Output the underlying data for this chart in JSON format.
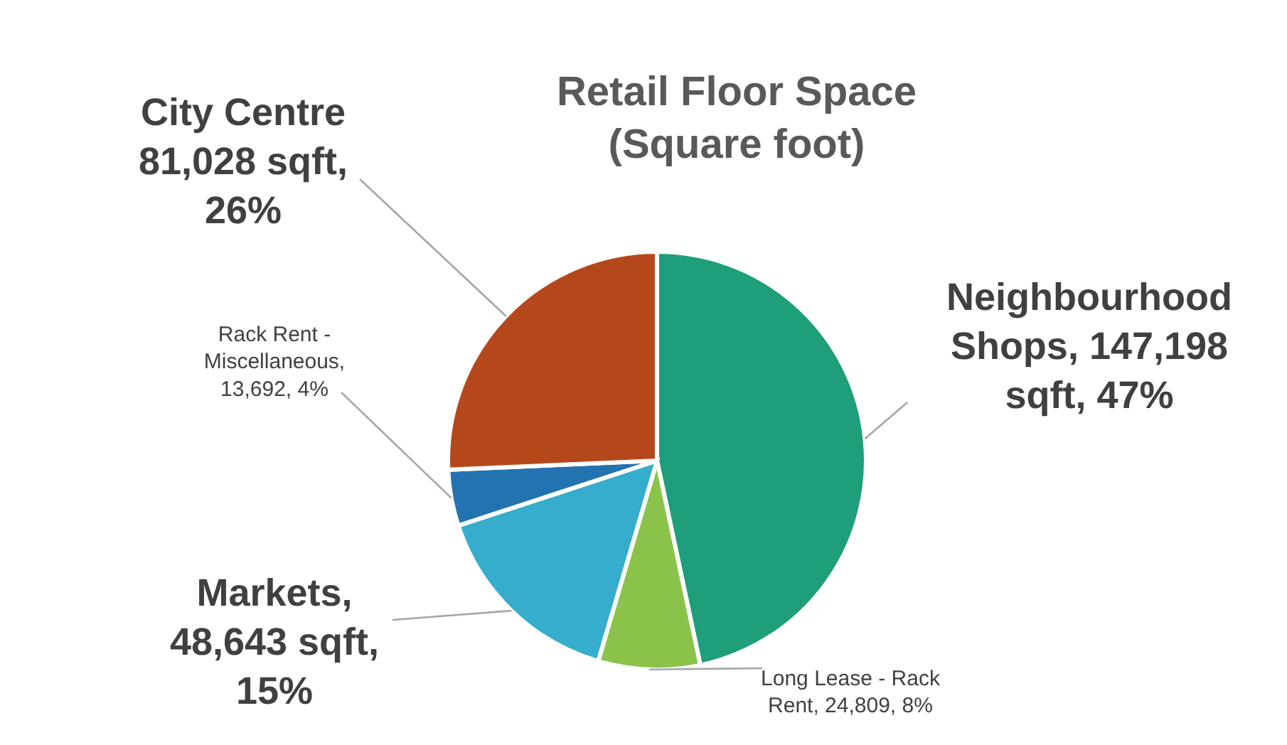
{
  "chart_data": {
    "type": "pie",
    "title": "Retail Floor Space (Square foot)",
    "categories": [
      "Neighbourhood Shops",
      "Long Lease - Rack Rent",
      "Markets",
      "Rack Rent - Miscellaneous",
      "City Centre"
    ],
    "values": [
      147198,
      24809,
      48643,
      13692,
      81028
    ],
    "colors": [
      "#1e9e7a",
      "#8bc34a",
      "#36adcc",
      "#2273b0",
      "#b5481a"
    ],
    "value_labels": [
      ", 147,198 sqft, 47%",
      ", 24,809, 8%",
      ", 48,643 sqft, 15%",
      ", 13,692, 4%",
      " 81,028 sqft, 26%"
    ]
  }
}
